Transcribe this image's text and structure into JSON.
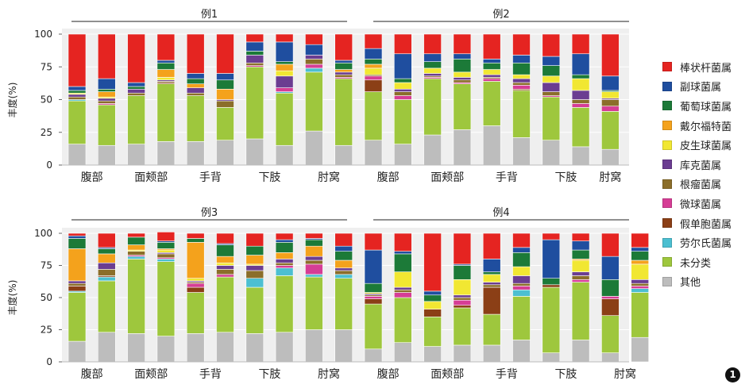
{
  "chart_data": {
    "type": "bar",
    "stacked": true,
    "ylabel": "丰度(%)",
    "ylim": [
      0,
      100
    ],
    "yticks": [
      0,
      25,
      50,
      75,
      100
    ],
    "grid": true,
    "legend_position": "right",
    "series_names": [
      "其他",
      "未分类",
      "劳尔氏菌属",
      "假单胞菌属",
      "微球菌属",
      "根瘤菌属",
      "库克菌属",
      "皮生球菌属",
      "戴尔福特菌",
      "葡萄球菌属",
      "副球菌属",
      "棒状杆菌属"
    ],
    "series_colors": [
      "#bdbdbd",
      "#9ec73d",
      "#4cbfd1",
      "#8b3f16",
      "#d63d95",
      "#8b6e2a",
      "#6b3d91",
      "#f1e732",
      "#f4a21c",
      "#1c7a38",
      "#1f4e9f",
      "#e52421"
    ],
    "legend_order": [
      "棒状杆菌属",
      "副球菌属",
      "葡萄球菌属",
      "戴尔福特菌",
      "皮生球菌属",
      "库克菌属",
      "根瘤菌属",
      "微球菌属",
      "假单胞菌属",
      "劳尔氏菌属",
      "未分类",
      "其他"
    ],
    "panels": [
      {
        "groups": [
          {
            "label": "例1",
            "sites": [
              "腹部",
              "面颊部",
              "手背",
              "下肢",
              "肘窝"
            ],
            "bars": [
              [
                16,
                33,
                1,
                0,
                0,
                2,
                2,
                1,
                0,
                2,
                3,
                40
              ],
              [
                15,
                31,
                0,
                0,
                1,
                2,
                2,
                1,
                4,
                2,
                8,
                34
              ],
              [
                16,
                37,
                0,
                0,
                0,
                2,
                3,
                0,
                0,
                2,
                3,
                37
              ],
              [
                18,
                44,
                0,
                1,
                0,
                1,
                1,
                2,
                6,
                5,
                2,
                20
              ],
              [
                18,
                35,
                0,
                0,
                0,
                2,
                4,
                0,
                3,
                4,
                4,
                30
              ],
              [
                19,
                25,
                0,
                0,
                0,
                5,
                1,
                0,
                8,
                7,
                5,
                30
              ],
              [
                20,
                55,
                0,
                0,
                1,
                2,
                6,
                0,
                0,
                3,
                7,
                6
              ],
              [
                15,
                40,
                1,
                0,
                3,
                0,
                9,
                4,
                5,
                2,
                15,
                6
              ],
              [
                26,
                45,
                3,
                0,
                3,
                4,
                3,
                0,
                0,
                0,
                8,
                8
              ],
              [
                15,
                51,
                0,
                0,
                1,
                2,
                2,
                0,
                2,
                5,
                2,
                20
              ]
            ]
          },
          {
            "label": "例2",
            "sites": [
              "腹部",
              "面颊部",
              "手背",
              "下肢",
              "肘窝"
            ],
            "bars": [
              [
                19,
                37,
                0,
                9,
                3,
                1,
                0,
                5,
                3,
                4,
                8,
                11
              ],
              [
                16,
                34,
                0,
                0,
                3,
                3,
                2,
                5,
                0,
                3,
                19,
                15
              ],
              [
                23,
                43,
                0,
                0,
                1,
                1,
                2,
                4,
                0,
                5,
                6,
                15
              ],
              [
                27,
                35,
                0,
                0,
                1,
                2,
                2,
                4,
                0,
                10,
                4,
                15
              ],
              [
                30,
                34,
                0,
                0,
                2,
                1,
                2,
                4,
                0,
                5,
                3,
                19
              ],
              [
                21,
                36,
                0,
                1,
                3,
                2,
                3,
                3,
                0,
                9,
                6,
                16
              ],
              [
                19,
                33,
                0,
                0,
                1,
                3,
                7,
                5,
                0,
                8,
                7,
                17
              ],
              [
                14,
                30,
                0,
                0,
                3,
                3,
                7,
                9,
                0,
                3,
                16,
                15
              ],
              [
                12,
                29,
                0,
                0,
                4,
                5,
                1,
                5,
                0,
                1,
                11,
                32
              ]
            ]
          }
        ]
      },
      {
        "groups": [
          {
            "label": "例3",
            "sites": [
              "腹部",
              "面颊部",
              "手背",
              "下肢",
              "肘窝"
            ],
            "bars": [
              [
                16,
                38,
                1,
                4,
                0,
                2,
                2,
                0,
                25,
                8,
                2,
                2
              ],
              [
                23,
                40,
                3,
                1,
                0,
                5,
                5,
                0,
                7,
                4,
                1,
                11
              ],
              [
                22,
                58,
                2,
                0,
                1,
                3,
                0,
                1,
                4,
                6,
                0,
                3
              ],
              [
                20,
                58,
                2,
                0,
                1,
                3,
                1,
                2,
                1,
                5,
                1,
                7
              ],
              [
                22,
                32,
                0,
                4,
                3,
                1,
                1,
                2,
                28,
                3,
                0,
                4
              ],
              [
                23,
                43,
                0,
                0,
                2,
                4,
                3,
                2,
                5,
                9,
                1,
                8
              ],
              [
                22,
                36,
                7,
                0,
                0,
                6,
                4,
                1,
                7,
                7,
                0,
                10
              ],
              [
                23,
                44,
                6,
                0,
                2,
                2,
                3,
                0,
                5,
                8,
                2,
                5
              ],
              [
                25,
                41,
                2,
                0,
                8,
                3,
                3,
                0,
                8,
                5,
                1,
                4
              ],
              [
                25,
                40,
                3,
                0,
                0,
                3,
                2,
                0,
                6,
                7,
                4,
                10
              ]
            ]
          },
          {
            "label": "例4",
            "sites": [
              "腹部",
              "面颊部",
              "手背",
              "下肢",
              "肘窝"
            ],
            "bars": [
              [
                10,
                35,
                0,
                4,
                2,
                1,
                1,
                1,
                0,
                7,
                26,
                13
              ],
              [
                15,
                35,
                0,
                0,
                4,
                2,
                2,
                12,
                0,
                14,
                2,
                14
              ],
              [
                12,
                23,
                0,
                6,
                0,
                0,
                0,
                6,
                0,
                5,
                3,
                45
              ],
              [
                13,
                29,
                0,
                2,
                4,
                2,
                2,
                12,
                0,
                11,
                1,
                24
              ],
              [
                13,
                24,
                0,
                21,
                0,
                2,
                2,
                6,
                0,
                2,
                10,
                20
              ],
              [
                17,
                34,
                5,
                0,
                3,
                2,
                6,
                7,
                0,
                11,
                4,
                11
              ],
              [
                7,
                51,
                0,
                2,
                0,
                0,
                0,
                0,
                0,
                5,
                30,
                5
              ],
              [
                17,
                45,
                0,
                0,
                2,
                3,
                3,
                9,
                1,
                7,
                7,
                6
              ],
              [
                7,
                29,
                0,
                13,
                2,
                0,
                0,
                0,
                0,
                13,
                18,
                18
              ],
              [
                19,
                35,
                3,
                0,
                2,
                2,
                3,
                12,
                3,
                7,
                3,
                11
              ]
            ]
          }
        ]
      }
    ]
  },
  "figure_badge": "1"
}
